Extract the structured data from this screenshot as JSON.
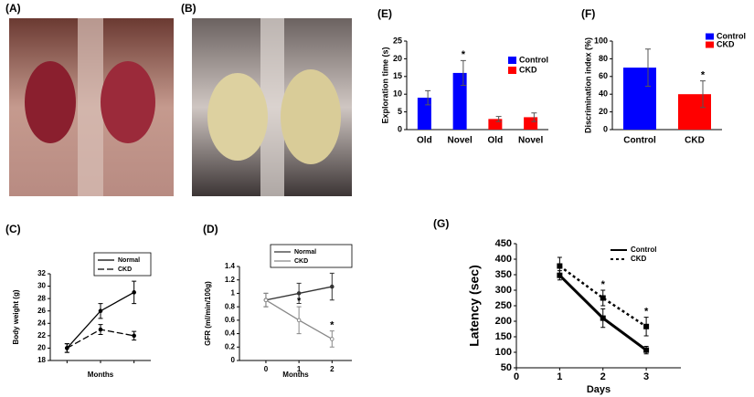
{
  "figures": [
    {
      "label": "(A)"
    },
    {
      "label": "(B)"
    }
  ],
  "chart_data": [
    {
      "type": "bar",
      "panel": "(E)",
      "ylabel": "Exploration time (s)",
      "categories": [
        "Old",
        "Novel",
        "Old",
        "Novel"
      ],
      "ylim": [
        0,
        25
      ],
      "yticks": [
        0,
        5,
        10,
        15,
        20,
        25
      ],
      "series": [
        {
          "name": "Control",
          "color": "#0000ff",
          "values": [
            9,
            16,
            null,
            null
          ],
          "errors": [
            2,
            3.5,
            null,
            null
          ],
          "stars": [
            null,
            "*",
            null,
            null
          ]
        },
        {
          "name": "CKD",
          "color": "#ff0000",
          "values": [
            null,
            null,
            3,
            3.5
          ],
          "errors": [
            null,
            null,
            0.7,
            1.2
          ],
          "stars": [
            null,
            null,
            null,
            null
          ]
        }
      ]
    },
    {
      "type": "bar",
      "panel": "(F)",
      "ylabel": "Discrimination index (%)",
      "categories": [
        "Control",
        "CKD"
      ],
      "colors": [
        "#0000ff",
        "#ff0000"
      ],
      "values": [
        70,
        40
      ],
      "errors": [
        21,
        15
      ],
      "stars": [
        null,
        "*"
      ],
      "ylim": [
        0,
        100
      ],
      "yticks": [
        0,
        20,
        40,
        60,
        80,
        100
      ]
    },
    {
      "type": "line",
      "panel": "(C)",
      "ylabel": "Body weight (g)",
      "xlabel": "Months",
      "categories": [
        null,
        null,
        null
      ],
      "ylim": [
        18,
        32
      ],
      "yticks": [
        18,
        20,
        22,
        24,
        26,
        28,
        30,
        32
      ],
      "series": [
        {
          "name": "Normal",
          "color": "#000000",
          "style": "solid",
          "marker": "circle",
          "values": [
            20,
            26,
            29
          ],
          "errors": [
            0.7,
            1.2,
            1.8
          ]
        },
        {
          "name": "CKD",
          "color": "#000000",
          "style": "dashed",
          "marker": "circle",
          "values": [
            20,
            23,
            22
          ],
          "errors": [
            0.7,
            0.8,
            0.7
          ]
        }
      ]
    },
    {
      "type": "line",
      "panel": "(D)",
      "ylabel": "GFR (ml/min/100g)",
      "xlabel": "Months",
      "x": [
        0,
        1,
        2
      ],
      "xlim": [
        -0.8,
        2.6
      ],
      "xticks": [
        0,
        1,
        2
      ],
      "ylim": [
        0,
        1.4
      ],
      "yticks": [
        0,
        0.2,
        0.4,
        0.6,
        0.8,
        1,
        1.2,
        1.4
      ],
      "series": [
        {
          "name": "Normal",
          "color": "#333333",
          "style": "solid",
          "marker": "circle",
          "values": [
            0.9,
            1.0,
            1.1
          ],
          "errors": [
            0.1,
            0.15,
            0.2
          ]
        },
        {
          "name": "CKD",
          "color": "#888888",
          "style": "solid",
          "marker": "open-circle",
          "values": [
            0.9,
            0.6,
            0.32
          ],
          "errors": [
            0.1,
            0.2,
            0.12
          ],
          "stars": [
            null,
            "*",
            "*"
          ]
        }
      ]
    },
    {
      "type": "line",
      "panel": "(G)",
      "ylabel": "Latency (sec)",
      "xlabel": "Days",
      "x": [
        1,
        2,
        3
      ],
      "xlim": [
        0,
        3.8
      ],
      "xticks": [
        0,
        1,
        2,
        3
      ],
      "ylim": [
        50,
        450
      ],
      "yticks": [
        50,
        100,
        150,
        200,
        250,
        300,
        350,
        400,
        450
      ],
      "series": [
        {
          "name": "Control",
          "color": "#000000",
          "style": "solid",
          "marker": "square",
          "width": 3,
          "values": [
            348,
            210,
            107
          ],
          "errors": [
            15,
            30,
            12
          ]
        },
        {
          "name": "CKD",
          "color": "#000000",
          "style": "dotted",
          "marker": "square",
          "width": 2.5,
          "values": [
            378,
            275,
            183
          ],
          "errors": [
            28,
            25,
            30
          ],
          "stars": [
            null,
            "*",
            "*"
          ]
        }
      ]
    }
  ]
}
